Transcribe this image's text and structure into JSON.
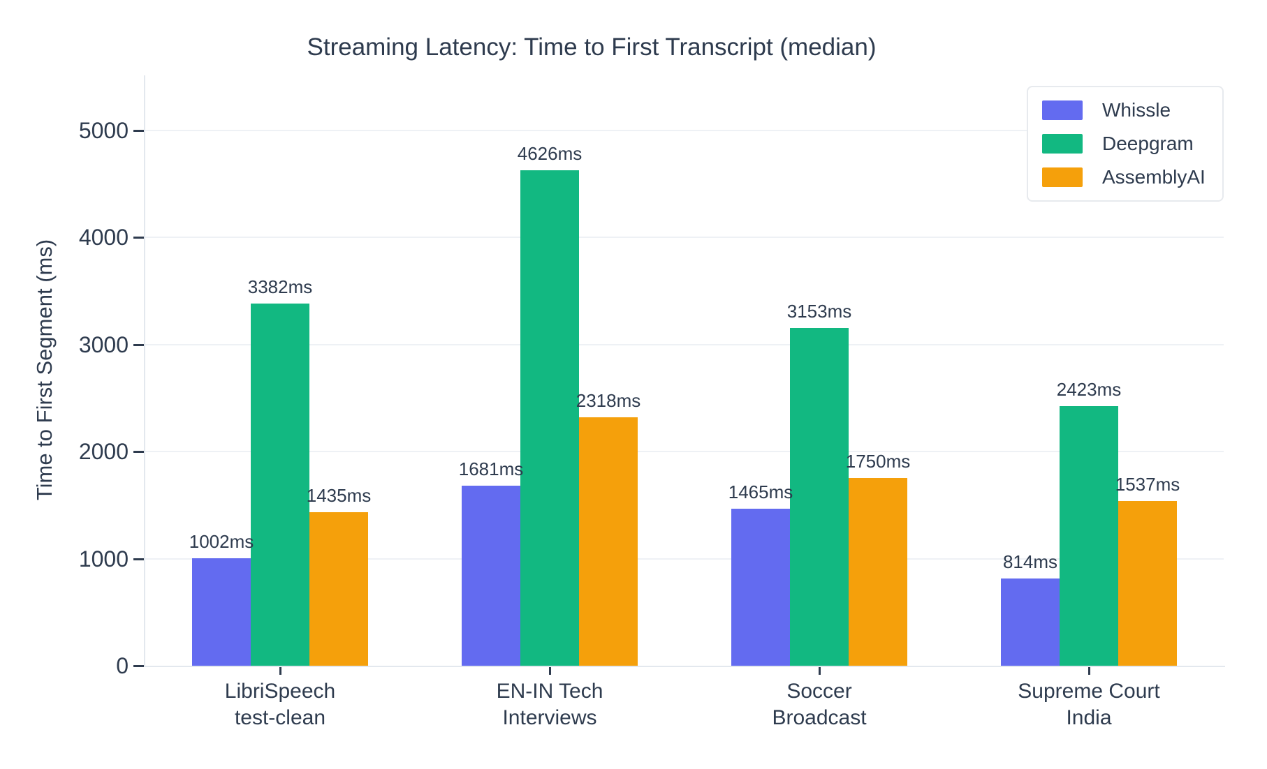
{
  "page": {
    "background": "#ffffff"
  },
  "colors": {
    "text": "#2E3B4E",
    "grid": "#EEF1F5",
    "spine": "#E3E8EE",
    "legend_border": "#E7EAEE",
    "whissle": "#636BF0",
    "deepgram": "#12B881",
    "assemblyai": "#F5A00B"
  },
  "chart_data": {
    "type": "bar",
    "title": "Streaming Latency: Time to First Transcript (median)",
    "ylabel": "Time to First Segment (ms)",
    "xlabel": "",
    "categories": [
      "LibriSpeech test-clean",
      "EN-IN Tech Interviews",
      "Soccer Broadcast",
      "Supreme Court India"
    ],
    "category_lines": [
      [
        "LibriSpeech",
        "test-clean"
      ],
      [
        "EN-IN Tech",
        "Interviews"
      ],
      [
        "Soccer",
        "Broadcast"
      ],
      [
        "Supreme Court",
        "India"
      ]
    ],
    "series": [
      {
        "name": "Whissle",
        "color": "#636BF0",
        "values": [
          1002,
          1681,
          1465,
          814
        ],
        "labels": [
          "1002ms",
          "1681ms",
          "1465ms",
          "814ms"
        ]
      },
      {
        "name": "Deepgram",
        "color": "#12B881",
        "values": [
          3382,
          4626,
          3153,
          2423
        ],
        "labels": [
          "3382ms",
          "4626ms",
          "3153ms",
          "2423ms"
        ]
      },
      {
        "name": "AssemblyAI",
        "color": "#F5A00B",
        "values": [
          1435,
          2318,
          1750,
          1537
        ],
        "labels": [
          "1435ms",
          "2318ms",
          "1750ms",
          "1537ms"
        ]
      }
    ],
    "value_label_suffix": "ms",
    "yticks": [
      0,
      1000,
      2000,
      3000,
      4000,
      5000
    ],
    "ylim": [
      0,
      5500
    ],
    "grid": true,
    "legend_position": "top-right"
  }
}
